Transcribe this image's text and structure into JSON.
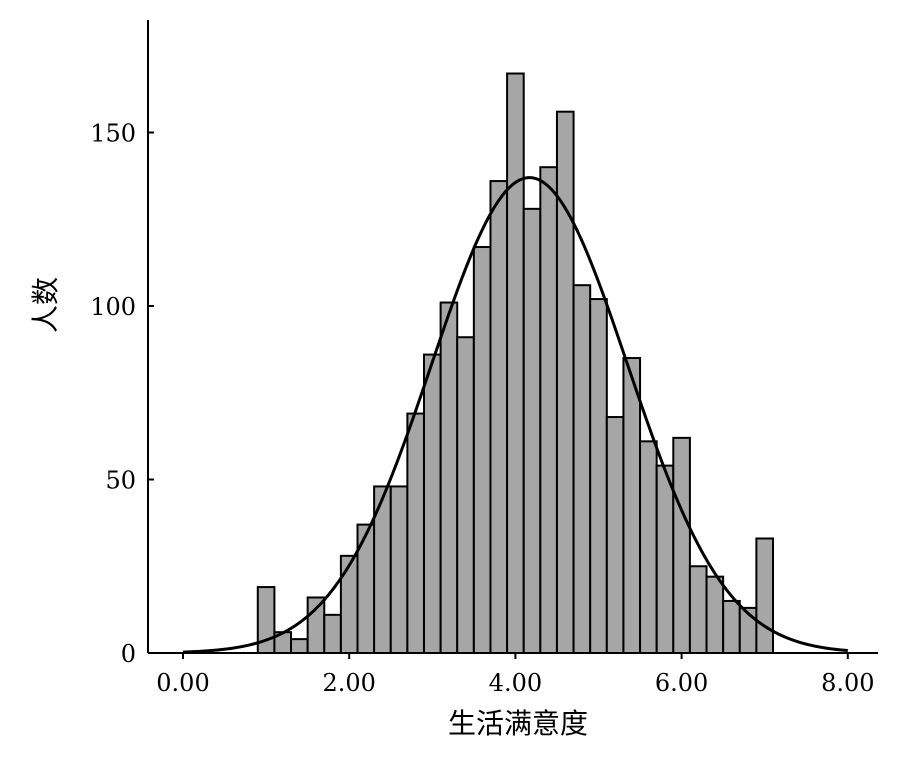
{
  "chart_data": {
    "type": "bar",
    "subtype": "histogram",
    "title": "",
    "xlabel": "生活满意度",
    "ylabel": "人数",
    "bin_width": 0.2,
    "bins": [
      {
        "x": 1.0,
        "count": 19
      },
      {
        "x": 1.2,
        "count": 6
      },
      {
        "x": 1.4,
        "count": 4
      },
      {
        "x": 1.6,
        "count": 16
      },
      {
        "x": 1.8,
        "count": 11
      },
      {
        "x": 2.0,
        "count": 28
      },
      {
        "x": 2.2,
        "count": 37
      },
      {
        "x": 2.4,
        "count": 48
      },
      {
        "x": 2.6,
        "count": 48
      },
      {
        "x": 2.8,
        "count": 69
      },
      {
        "x": 3.0,
        "count": 86
      },
      {
        "x": 3.2,
        "count": 101
      },
      {
        "x": 3.4,
        "count": 91
      },
      {
        "x": 3.6,
        "count": 117
      },
      {
        "x": 3.8,
        "count": 136
      },
      {
        "x": 4.0,
        "count": 167
      },
      {
        "x": 4.2,
        "count": 128
      },
      {
        "x": 4.4,
        "count": 140
      },
      {
        "x": 4.6,
        "count": 156
      },
      {
        "x": 4.8,
        "count": 106
      },
      {
        "x": 5.0,
        "count": 102
      },
      {
        "x": 5.2,
        "count": 68
      },
      {
        "x": 5.4,
        "count": 85
      },
      {
        "x": 5.6,
        "count": 61
      },
      {
        "x": 5.8,
        "count": 54
      },
      {
        "x": 6.0,
        "count": 62
      },
      {
        "x": 6.2,
        "count": 25
      },
      {
        "x": 6.4,
        "count": 22
      },
      {
        "x": 6.6,
        "count": 15
      },
      {
        "x": 6.8,
        "count": 13
      },
      {
        "x": 7.0,
        "count": 33
      }
    ],
    "normal_curve": {
      "mean": 4.17,
      "sd": 1.18,
      "peak": 137
    },
    "xlim": [
      -0.2,
      8.4
    ],
    "ylim": [
      0,
      182
    ],
    "x_ticks": [
      "0.00",
      "2.00",
      "4.00",
      "6.00",
      "8.00"
    ],
    "y_ticks": [
      "0",
      "50",
      "100",
      "150"
    ],
    "bar_color": "#a6a6a6",
    "bar_edge_color": "#000000",
    "curve_color": "#000000",
    "grid": false,
    "legend": "none"
  }
}
